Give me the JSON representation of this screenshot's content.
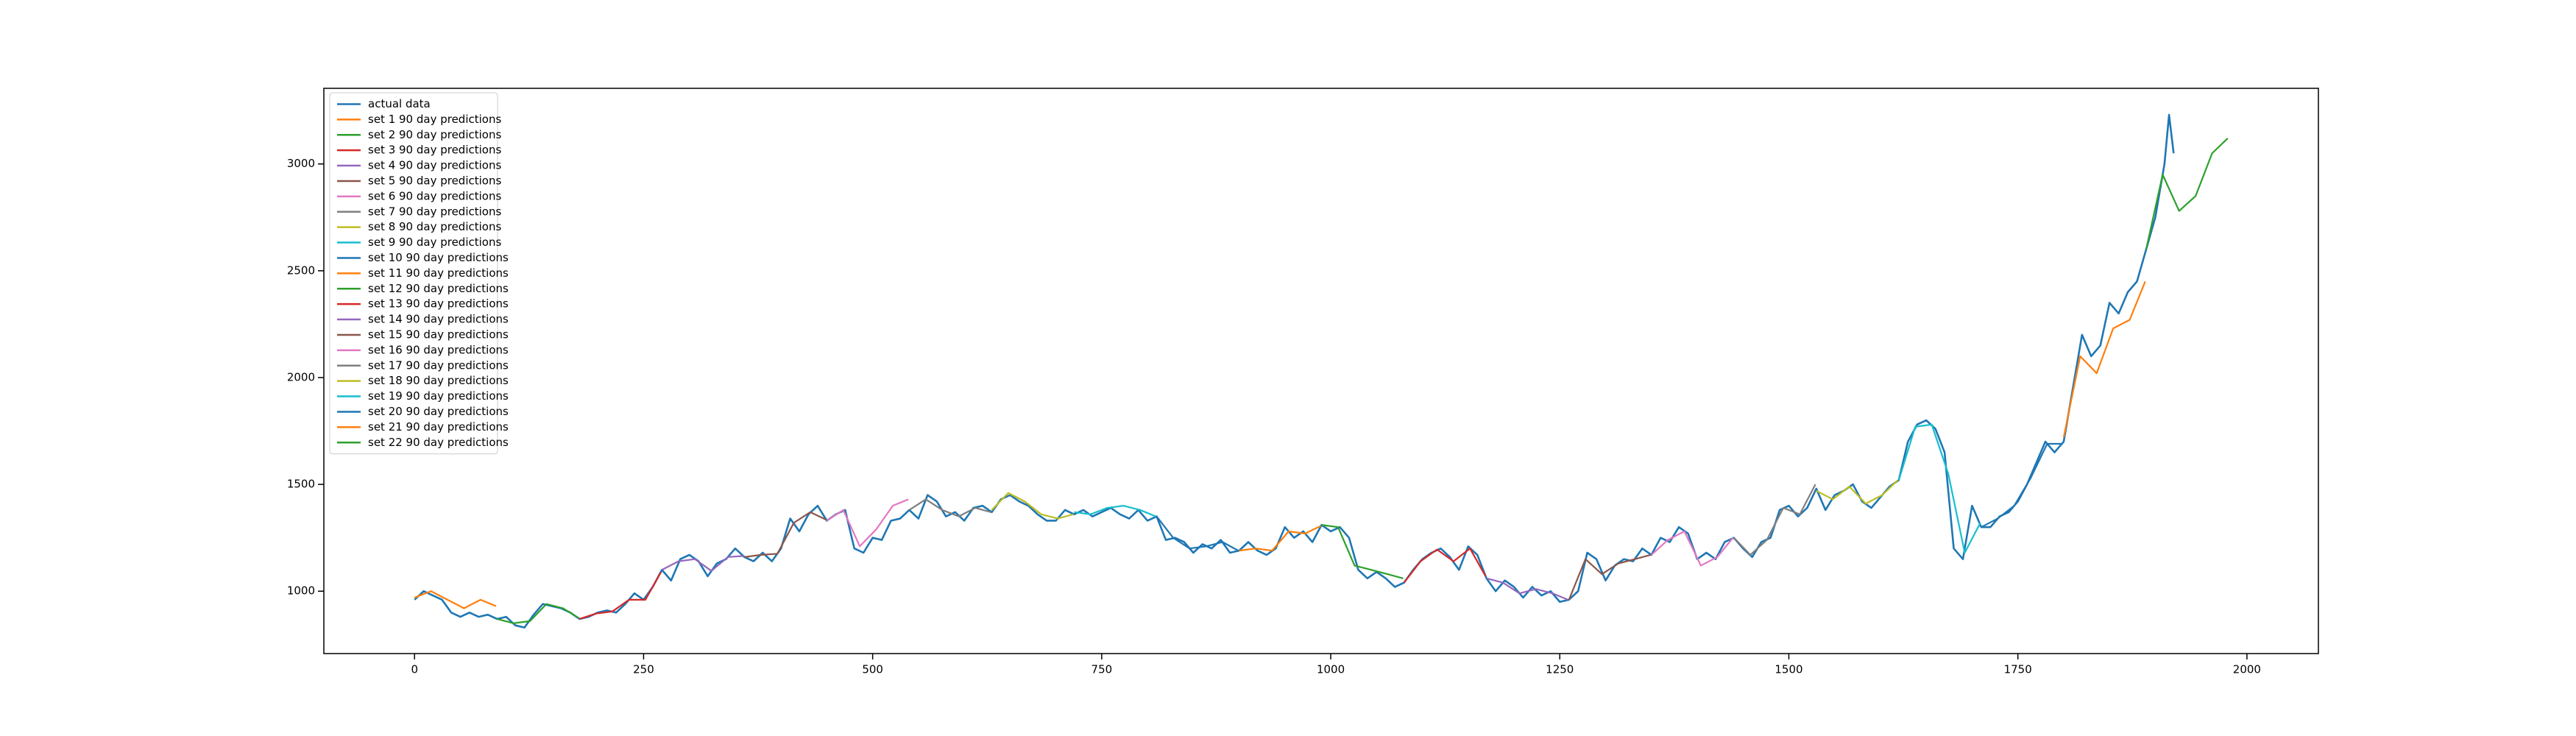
{
  "chart_data": {
    "type": "line",
    "legend": "upper left",
    "grid": false,
    "xlim": [
      -99,
      2078
    ],
    "ylim": [
      708,
      3354
    ],
    "xticks": [
      0,
      250,
      500,
      750,
      1000,
      1250,
      1500,
      1750,
      2000
    ],
    "yticks": [
      1000,
      1500,
      2000,
      2500,
      3000
    ],
    "series": [
      {
        "name": "actual data",
        "color": "#1f77b4",
        "x": [
          0,
          10,
          20,
          30,
          40,
          50,
          60,
          70,
          80,
          90,
          100,
          110,
          120,
          130,
          140,
          150,
          160,
          170,
          180,
          190,
          200,
          210,
          220,
          230,
          240,
          250,
          260,
          270,
          280,
          290,
          300,
          310,
          320,
          330,
          340,
          350,
          360,
          370,
          380,
          390,
          400,
          410,
          420,
          430,
          440,
          450,
          460,
          470,
          480,
          490,
          500,
          510,
          520,
          530,
          540,
          550,
          560,
          570,
          580,
          590,
          600,
          610,
          620,
          630,
          640,
          650,
          660,
          670,
          680,
          690,
          700,
          710,
          720,
          730,
          740,
          750,
          760,
          770,
          780,
          790,
          800,
          810,
          820,
          830,
          840,
          850,
          860,
          870,
          880,
          890,
          900,
          910,
          920,
          930,
          940,
          950,
          960,
          970,
          980,
          990,
          1000,
          1010,
          1020,
          1030,
          1040,
          1050,
          1060,
          1070,
          1080,
          1090,
          1100,
          1110,
          1120,
          1130,
          1140,
          1150,
          1160,
          1170,
          1180,
          1190,
          1200,
          1210,
          1220,
          1230,
          1240,
          1250,
          1260,
          1270,
          1280,
          1290,
          1300,
          1310,
          1320,
          1330,
          1340,
          1350,
          1360,
          1370,
          1380,
          1390,
          1400,
          1410,
          1420,
          1430,
          1440,
          1450,
          1460,
          1470,
          1480,
          1490,
          1500,
          1510,
          1520,
          1530,
          1540,
          1550,
          1560,
          1570,
          1580,
          1590,
          1600,
          1610,
          1620,
          1630,
          1640,
          1650,
          1660,
          1670,
          1680,
          1690,
          1700,
          1710,
          1720,
          1730,
          1740,
          1750,
          1760,
          1770,
          1780,
          1790,
          1800,
          1810,
          1820,
          1830,
          1840,
          1850,
          1860,
          1870,
          1880,
          1890,
          1900,
          1910,
          1915,
          1920
        ],
        "values": [
          960,
          1000,
          980,
          960,
          900,
          880,
          900,
          880,
          890,
          870,
          880,
          840,
          830,
          890,
          940,
          930,
          920,
          900,
          870,
          880,
          900,
          910,
          900,
          940,
          990,
          960,
          1020,
          1100,
          1050,
          1150,
          1170,
          1140,
          1070,
          1130,
          1150,
          1200,
          1160,
          1140,
          1180,
          1140,
          1200,
          1340,
          1280,
          1360,
          1400,
          1330,
          1360,
          1380,
          1200,
          1180,
          1250,
          1240,
          1330,
          1340,
          1380,
          1340,
          1450,
          1420,
          1350,
          1370,
          1330,
          1390,
          1400,
          1370,
          1430,
          1450,
          1420,
          1400,
          1360,
          1330,
          1330,
          1380,
          1360,
          1380,
          1350,
          1370,
          1390,
          1360,
          1340,
          1380,
          1330,
          1350,
          1240,
          1250,
          1230,
          1180,
          1220,
          1200,
          1240,
          1180,
          1190,
          1230,
          1190,
          1170,
          1200,
          1300,
          1250,
          1280,
          1230,
          1310,
          1280,
          1300,
          1250,
          1100,
          1060,
          1090,
          1060,
          1020,
          1040,
          1100,
          1150,
          1180,
          1200,
          1160,
          1100,
          1210,
          1170,
          1060,
          1000,
          1050,
          1020,
          970,
          1020,
          980,
          1000,
          950,
          960,
          1000,
          1180,
          1150,
          1050,
          1120,
          1150,
          1140,
          1200,
          1170,
          1250,
          1230,
          1300,
          1270,
          1150,
          1180,
          1150,
          1230,
          1250,
          1200,
          1160,
          1230,
          1250,
          1380,
          1400,
          1350,
          1390,
          1480,
          1380,
          1450,
          1470,
          1500,
          1420,
          1390,
          1440,
          1490,
          1520,
          1700,
          1780,
          1800,
          1760,
          1650,
          1200,
          1150,
          1400,
          1300,
          1300,
          1350,
          1370,
          1420,
          1500,
          1600,
          1700,
          1650,
          1700,
          1950,
          2200,
          2100,
          2150,
          2350,
          2300,
          2400,
          2450,
          2600,
          2750,
          3000,
          3230,
          3050
        ]
      },
      {
        "name": "set 1 90 day predictions",
        "color": "#ff7f0e",
        "x": [
          0,
          18,
          36,
          54,
          72,
          89
        ],
        "values": [
          970,
          1000,
          960,
          920,
          960,
          930
        ]
      },
      {
        "name": "set 2 90 day predictions",
        "color": "#2ca02c",
        "x": [
          90,
          108,
          126,
          144,
          162,
          179
        ],
        "values": [
          870,
          850,
          860,
          940,
          920,
          875
        ]
      },
      {
        "name": "set 3 90 day predictions",
        "color": "#d62728",
        "x": [
          180,
          198,
          216,
          234,
          252,
          269
        ],
        "values": [
          870,
          895,
          905,
          960,
          960,
          1090
        ]
      },
      {
        "name": "set 4 90 day predictions",
        "color": "#9467bd",
        "x": [
          270,
          288,
          306,
          324,
          342,
          359
        ],
        "values": [
          1100,
          1140,
          1150,
          1095,
          1160,
          1165
        ]
      },
      {
        "name": "set 5 90 day predictions",
        "color": "#8c564b",
        "x": [
          360,
          378,
          396,
          414,
          432,
          449
        ],
        "values": [
          1160,
          1170,
          1175,
          1320,
          1370,
          1335
        ]
      },
      {
        "name": "set 6 90 day predictions",
        "color": "#e377c2",
        "x": [
          450,
          468,
          486,
          504,
          522,
          539
        ],
        "values": [
          1330,
          1380,
          1210,
          1290,
          1400,
          1430
        ]
      },
      {
        "name": "set 7 90 day predictions",
        "color": "#7f7f7f",
        "x": [
          540,
          558,
          576,
          594,
          612,
          629
        ],
        "values": [
          1380,
          1430,
          1380,
          1350,
          1390,
          1370
        ]
      },
      {
        "name": "set 8 90 day predictions",
        "color": "#bcbd22",
        "x": [
          630,
          648,
          666,
          684,
          702,
          719
        ],
        "values": [
          1380,
          1460,
          1420,
          1360,
          1340,
          1360
        ]
      },
      {
        "name": "set 9 90 day predictions",
        "color": "#17becf",
        "x": [
          720,
          738,
          756,
          774,
          792,
          809
        ],
        "values": [
          1370,
          1360,
          1390,
          1400,
          1380,
          1350
        ]
      },
      {
        "name": "set 10 90 day predictions",
        "color": "#1f77b4",
        "x": [
          810,
          828,
          846,
          864,
          882,
          899
        ],
        "values": [
          1350,
          1250,
          1200,
          1210,
          1230,
          1190
        ]
      },
      {
        "name": "set 11 90 day predictions",
        "color": "#ff7f0e",
        "x": [
          900,
          918,
          936,
          954,
          972,
          989
        ],
        "values": [
          1190,
          1200,
          1190,
          1280,
          1270,
          1305
        ]
      },
      {
        "name": "set 12 90 day predictions",
        "color": "#2ca02c",
        "x": [
          990,
          1008,
          1026,
          1044,
          1062,
          1079
        ],
        "values": [
          1310,
          1300,
          1120,
          1100,
          1080,
          1060
        ]
      },
      {
        "name": "set 13 90 day predictions",
        "color": "#d62728",
        "x": [
          1080,
          1098,
          1116,
          1134,
          1152,
          1169
        ],
        "values": [
          1040,
          1140,
          1195,
          1140,
          1200,
          1070
        ]
      },
      {
        "name": "set 14 90 day predictions",
        "color": "#9467bd",
        "x": [
          1170,
          1188,
          1206,
          1224,
          1242,
          1259
        ],
        "values": [
          1060,
          1040,
          990,
          1010,
          990,
          960
        ]
      },
      {
        "name": "set 15 90 day predictions",
        "color": "#8c564b",
        "x": [
          1260,
          1278,
          1296,
          1314,
          1332,
          1349
        ],
        "values": [
          960,
          1150,
          1080,
          1130,
          1150,
          1170
        ]
      },
      {
        "name": "set 16 90 day predictions",
        "color": "#e377c2",
        "x": [
          1350,
          1368,
          1386,
          1404,
          1422,
          1439
        ],
        "values": [
          1170,
          1240,
          1280,
          1120,
          1160,
          1250
        ]
      },
      {
        "name": "set 17 90 day predictions",
        "color": "#7f7f7f",
        "x": [
          1440,
          1458,
          1476,
          1494,
          1512,
          1529
        ],
        "values": [
          1250,
          1170,
          1240,
          1390,
          1360,
          1500
        ]
      },
      {
        "name": "set 18 90 day predictions",
        "color": "#bcbd22",
        "x": [
          1530,
          1548,
          1566,
          1584,
          1602,
          1619
        ],
        "values": [
          1470,
          1430,
          1490,
          1410,
          1450,
          1520
        ]
      },
      {
        "name": "set 19 90 day predictions",
        "color": "#17becf",
        "x": [
          1620,
          1638,
          1656,
          1674,
          1692,
          1709
        ],
        "values": [
          1520,
          1770,
          1780,
          1550,
          1180,
          1320
        ]
      },
      {
        "name": "set 20 90 day predictions",
        "color": "#1f77b4",
        "x": [
          1710,
          1728,
          1746,
          1764,
          1782,
          1799
        ],
        "values": [
          1300,
          1340,
          1400,
          1530,
          1690,
          1690
        ]
      },
      {
        "name": "set 21 90 day predictions",
        "color": "#ff7f0e",
        "x": [
          1800,
          1818,
          1836,
          1854,
          1872,
          1889
        ],
        "values": [
          1720,
          2100,
          2020,
          2230,
          2270,
          2450
        ]
      },
      {
        "name": "set 22 90 day predictions",
        "color": "#2ca02c",
        "x": [
          1890,
          1908,
          1926,
          1944,
          1962,
          1979
        ],
        "values": [
          2600,
          2950,
          2780,
          2850,
          3050,
          3120
        ]
      }
    ]
  }
}
